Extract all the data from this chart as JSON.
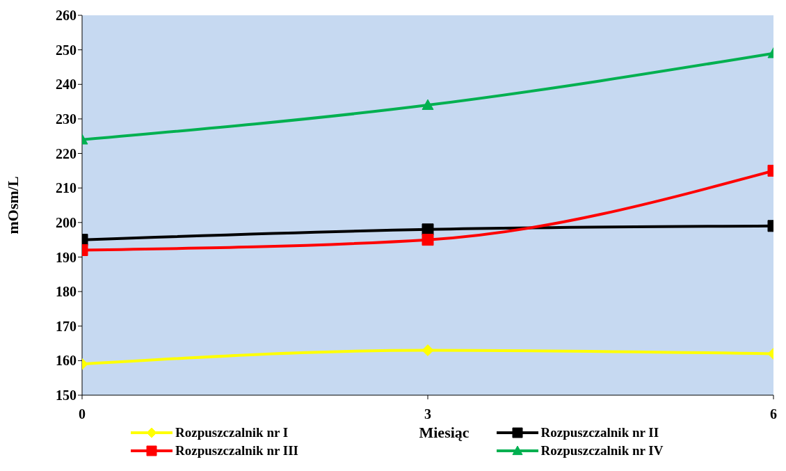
{
  "chart_data": {
    "type": "line",
    "xlabel": "Miesiąc",
    "ylabel": "mOsm/L",
    "x": [
      0,
      3,
      6
    ],
    "xlim": [
      0,
      6
    ],
    "xticks": [
      0,
      3,
      6
    ],
    "ylim": [
      150,
      260
    ],
    "yticks": [
      150,
      160,
      170,
      180,
      190,
      200,
      210,
      220,
      230,
      240,
      250,
      260
    ],
    "grid": false,
    "legend": "bottom",
    "series": [
      {
        "name": "Rozpuszczalnik nr I",
        "color": "#ffff00",
        "marker": "diamond",
        "values": [
          159,
          163,
          162
        ]
      },
      {
        "name": "Rozpuszczalnik nr II",
        "color": "#000000",
        "marker": "square",
        "values": [
          195,
          198,
          199
        ]
      },
      {
        "name": "Rozpuszczalnik nr III",
        "color": "#ff0000",
        "marker": "square",
        "values": [
          192,
          195,
          215
        ]
      },
      {
        "name": "Rozpuszczalnik nr IV",
        "color": "#00b050",
        "marker": "triangle",
        "values": [
          224,
          234,
          249
        ]
      }
    ]
  }
}
